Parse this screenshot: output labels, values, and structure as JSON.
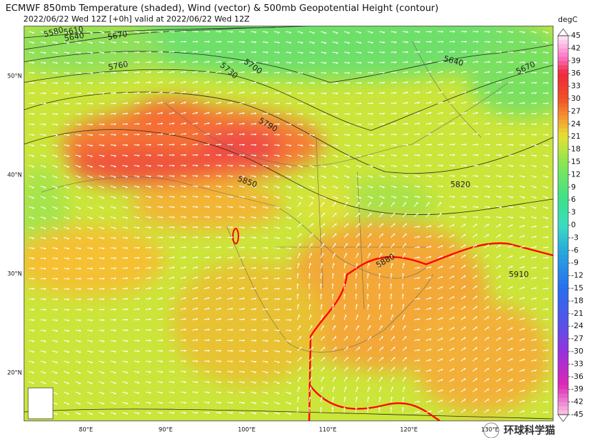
{
  "title": "ECMWF 850mb Temperature (shaded), Wind (vector) & 500mb Geopotential Height (contour)",
  "subtitle": "2022/06/22 Wed 12Z [+0h] valid at 2022/06/22 Wed 12Z",
  "latitude_labels": [
    "50°N",
    "40°N",
    "30°N",
    "20°N"
  ],
  "longitude_labels": [
    "80°E",
    "90°E",
    "100°E",
    "110°E",
    "120°E",
    "130°E"
  ],
  "contour_labels": [
    "5580",
    "5610",
    "5640",
    "5670",
    "5760",
    "5730",
    "5700",
    "5640",
    "5670",
    "5790",
    "5850",
    "5820",
    "5880",
    "5910"
  ],
  "colorbar": {
    "unit": "degC",
    "lim": [
      -45,
      45
    ],
    "ticks": [
      45,
      42,
      39,
      36,
      33,
      30,
      27,
      24,
      21,
      18,
      15,
      12,
      9,
      6,
      3,
      0,
      -3,
      -6,
      -9,
      -12,
      -15,
      -18,
      -21,
      -24,
      -27,
      -30,
      -33,
      -36,
      -39,
      -42,
      -45
    ]
  },
  "watermark": "环球科学猫"
}
